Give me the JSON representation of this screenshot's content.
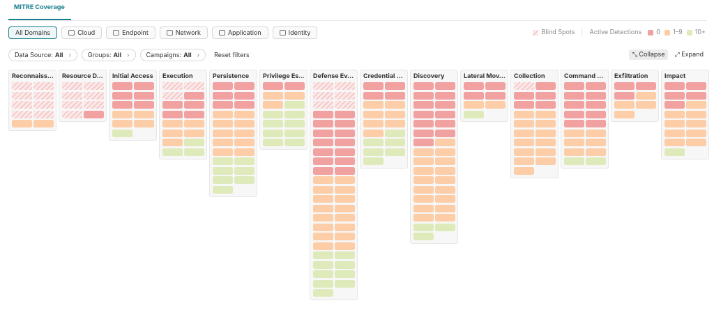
{
  "tab": "MITRE Coverage",
  "domains": [
    "All Domains",
    "Cloud",
    "Endpoint",
    "Network",
    "Application",
    "Identity"
  ],
  "legend": {
    "blind": {
      "label": "Blind Spots",
      "color": "#f6c9c9"
    },
    "active_label": "Active Detections",
    "items": [
      {
        "label": "0",
        "color": "#f2a1a1"
      },
      {
        "label": "1–9",
        "color": "#fccda6"
      },
      {
        "label": "10+",
        "color": "#dfeabb"
      }
    ]
  },
  "filters": [
    {
      "label": "Data Source:",
      "value": "All"
    },
    {
      "label": "Groups:",
      "value": "All"
    },
    {
      "label": "Campaigns:",
      "value": "All"
    }
  ],
  "reset": "Reset filters",
  "collapse": "Collapse",
  "expand": "Expand",
  "columns": [
    {
      "title": "Reconnaiss…",
      "cells": [
        "Blind Spots",
        "Blind Spots",
        "Blind Spots",
        "Blind Spots",
        "Blind Spots",
        "Blind Spots",
        "Blind Spots",
        "Blind Spots",
        "1–9",
        "1–9"
      ]
    },
    {
      "title": "Resource D…",
      "cells": [
        "Blind Spots",
        "Blind Spots",
        "Blind Spots",
        "Blind Spots",
        "Blind Spots",
        "Blind Spots",
        "Blind Spots",
        "0"
      ]
    },
    {
      "title": "Initial Access",
      "cells": [
        "0",
        "0",
        "0",
        "0",
        "0",
        "0",
        "1–9",
        "1–9",
        "1–9",
        "1–9",
        "10+"
      ]
    },
    {
      "title": "Execution",
      "cells": [
        "Blind Spots",
        "Blind Spots",
        "Blind Spots",
        "0",
        "0",
        "0",
        "0",
        "0",
        "1–9",
        "1–9",
        "1–9",
        "1–9",
        "1–9",
        "10+",
        "10+",
        "10+"
      ]
    },
    {
      "title": "Persistence",
      "cells": [
        "0",
        "0",
        "0",
        "0",
        "0",
        "0",
        "1–9",
        "1–9",
        "1–9",
        "1–9",
        "1–9",
        "1–9",
        "1–9",
        "1–9",
        "1–9",
        "1–9",
        "10+",
        "10+",
        "10+",
        "10+",
        "10+",
        "10+",
        "10+"
      ]
    },
    {
      "title": "Privilege Es…",
      "cells": [
        "0",
        "0",
        "1–9",
        "1–9",
        "1–9",
        "10+",
        "10+",
        "10+",
        "10+",
        "10+",
        "10+",
        "10+",
        "10+",
        "10+"
      ]
    },
    {
      "title": "Defense Ev…",
      "cells": [
        "Blind Spots",
        "Blind Spots",
        "Blind Spots",
        "Blind Spots",
        "Blind Spots",
        "Blind Spots",
        "0",
        "0",
        "0",
        "0",
        "0",
        "0",
        "0",
        "0",
        "0",
        "0",
        "0",
        "0",
        "0",
        "0",
        "1–9",
        "1–9",
        "1–9",
        "1–9",
        "1–9",
        "1–9",
        "1–9",
        "1–9",
        "1–9",
        "1–9",
        "1–9",
        "1–9",
        "1–9",
        "1–9",
        "1–9",
        "1–9",
        "10+",
        "10+",
        "10+",
        "10+",
        "10+",
        "10+",
        "10+",
        "10+",
        "10+"
      ]
    },
    {
      "title": "Credential …",
      "cells": [
        "0",
        "0",
        "0",
        "0",
        "1–9",
        "1–9",
        "1–9",
        "1–9",
        "1–9",
        "1–9",
        "1–9",
        "10+",
        "10+",
        "10+",
        "10+",
        "10+",
        "10+"
      ]
    },
    {
      "title": "Discovery",
      "cells": [
        "0",
        "0",
        "0",
        "0",
        "0",
        "0",
        "0",
        "0",
        "0",
        "0",
        "0",
        "0",
        "0",
        "1–9",
        "1–9",
        "1–9",
        "1–9",
        "1–9",
        "1–9",
        "1–9",
        "1–9",
        "1–9",
        "1–9",
        "1–9",
        "1–9",
        "1–9",
        "1–9",
        "1–9",
        "1–9",
        "1–9",
        "10+",
        "10+",
        "10+"
      ]
    },
    {
      "title": "Lateral Mov…",
      "cells": [
        "0",
        "0",
        "0",
        "0",
        "1–9",
        "1–9",
        "10+"
      ]
    },
    {
      "title": "Collection",
      "cells": [
        "Blind Spots",
        "0",
        "0",
        "0",
        "0",
        "0",
        "1–9",
        "1–9",
        "1–9",
        "1–9",
        "1–9",
        "1–9",
        "1–9",
        "1–9",
        "1–9",
        "1–9",
        "1–9",
        "1–9",
        "1–9"
      ]
    },
    {
      "title": "Command …",
      "cells": [
        "0",
        "0",
        "0",
        "0",
        "0",
        "0",
        "0",
        "0",
        "0",
        "0",
        "1–9",
        "1–9",
        "1–9",
        "1–9",
        "1–9",
        "1–9",
        "10+",
        "10+"
      ]
    },
    {
      "title": "Exfiltration",
      "cells": [
        "0",
        "0",
        "0",
        "1–9",
        "1–9",
        "1–9",
        "1–9"
      ]
    },
    {
      "title": "Impact",
      "cells": [
        "0",
        "0",
        "0",
        "0",
        "0",
        "1–9",
        "1–9",
        "1–9",
        "1–9",
        "1–9",
        "1–9",
        "1–9",
        "1–9",
        "1–9",
        "10+"
      ]
    }
  ]
}
